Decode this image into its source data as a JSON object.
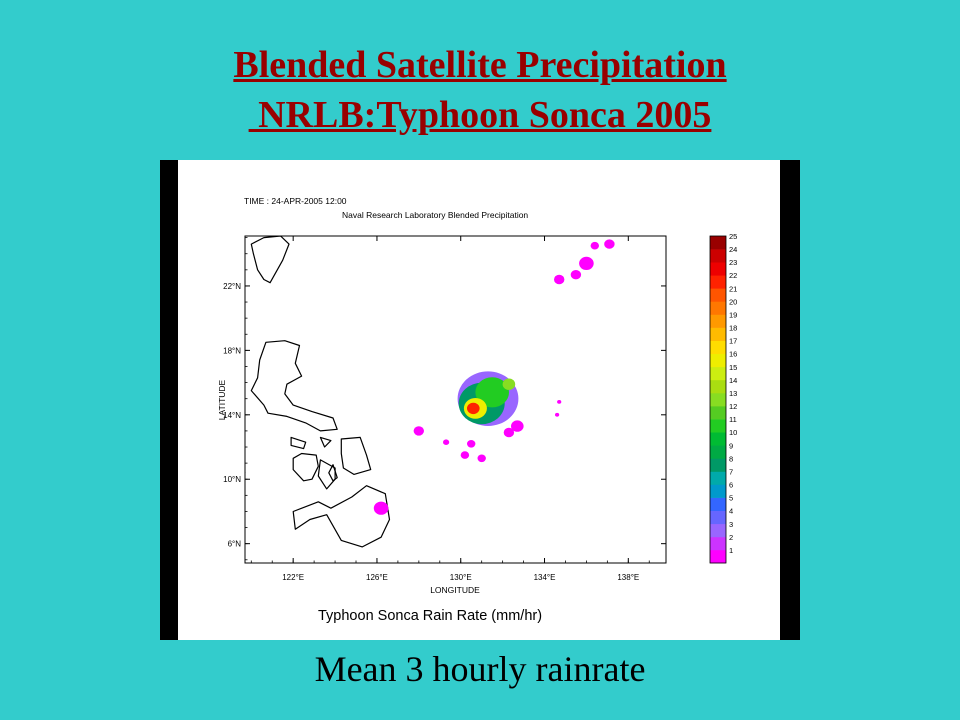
{
  "slide": {
    "title_line1": "Blended Satellite Precipitation",
    "title_line2": " NRLB:Typhoon Sonca 2005",
    "caption": "Mean 3 hourly rainrate"
  },
  "chart_data": {
    "type": "heatmap",
    "time_label": "TIME : 24-APR-2005 12:00",
    "subtitle": "Naval Research Laboratory Blended Precipitation",
    "xlabel": "LONGITUDE",
    "ylabel": "LATITUDE",
    "title": "Typhoon Sonca Rain Rate (mm/hr)",
    "xlim": [
      119.7,
      139.8
    ],
    "ylim": [
      4.8,
      25.1
    ],
    "x_ticks": [
      {
        "value": 122,
        "label": "122°E"
      },
      {
        "value": 126,
        "label": "126°E"
      },
      {
        "value": 130,
        "label": "130°E"
      },
      {
        "value": 134,
        "label": "134°E"
      },
      {
        "value": 138,
        "label": "138°E"
      }
    ],
    "y_ticks": [
      {
        "value": 6,
        "label": "6°N"
      },
      {
        "value": 10,
        "label": "10°N"
      },
      {
        "value": 14,
        "label": "14°N"
      },
      {
        "value": 18,
        "label": "18°N"
      },
      {
        "value": 22,
        "label": "22°N"
      }
    ],
    "colorbar": {
      "levels": [
        "1",
        "2",
        "3",
        "4",
        "5",
        "6",
        "7",
        "8",
        "9",
        "10",
        "11",
        "12",
        "13",
        "14",
        "15",
        "16",
        "17",
        "18",
        "19",
        "20",
        "21",
        "22",
        "23",
        "24",
        "25"
      ],
      "colors": [
        "#ff00ff",
        "#cc33ff",
        "#9966ff",
        "#6666ff",
        "#3366ff",
        "#0099cc",
        "#00aaaa",
        "#009966",
        "#00aa44",
        "#00bb33",
        "#22cc22",
        "#55cc22",
        "#88dd22",
        "#aadd11",
        "#ccee11",
        "#eeee00",
        "#ffdd00",
        "#ffbb00",
        "#ff9900",
        "#ff7700",
        "#ff5500",
        "#ff2200",
        "#ee0000",
        "#cc0000",
        "#990000"
      ]
    },
    "rain_cells": [
      {
        "lon": 131.3,
        "lat": 15.0,
        "r": 1.45,
        "level": 3
      },
      {
        "lon": 131.0,
        "lat": 14.7,
        "r": 1.1,
        "level": 8
      },
      {
        "lon": 131.5,
        "lat": 15.4,
        "r": 0.8,
        "level": 11
      },
      {
        "lon": 130.7,
        "lat": 14.4,
        "r": 0.55,
        "level": 16
      },
      {
        "lon": 130.6,
        "lat": 14.4,
        "r": 0.3,
        "level": 22
      },
      {
        "lon": 132.3,
        "lat": 15.9,
        "r": 0.3,
        "level": 13
      },
      {
        "lon": 132.7,
        "lat": 13.3,
        "r": 0.3,
        "level": 1
      },
      {
        "lon": 132.3,
        "lat": 12.9,
        "r": 0.25,
        "level": 1
      },
      {
        "lon": 128.0,
        "lat": 13.0,
        "r": 0.25,
        "level": 1
      },
      {
        "lon": 129.3,
        "lat": 12.3,
        "r": 0.15,
        "level": 1
      },
      {
        "lon": 130.5,
        "lat": 12.2,
        "r": 0.2,
        "level": 1
      },
      {
        "lon": 130.2,
        "lat": 11.5,
        "r": 0.2,
        "level": 1
      },
      {
        "lon": 131.0,
        "lat": 11.3,
        "r": 0.2,
        "level": 1
      },
      {
        "lon": 126.2,
        "lat": 8.2,
        "r": 0.35,
        "level": 1
      },
      {
        "lon": 136.0,
        "lat": 23.4,
        "r": 0.35,
        "level": 1
      },
      {
        "lon": 135.5,
        "lat": 22.7,
        "r": 0.25,
        "level": 1
      },
      {
        "lon": 134.7,
        "lat": 22.4,
        "r": 0.25,
        "level": 1
      },
      {
        "lon": 136.4,
        "lat": 24.5,
        "r": 0.2,
        "level": 1
      },
      {
        "lon": 137.1,
        "lat": 24.6,
        "r": 0.25,
        "level": 1
      },
      {
        "lon": 134.7,
        "lat": 14.8,
        "r": 0.1,
        "level": 1
      },
      {
        "lon": 134.6,
        "lat": 14.0,
        "r": 0.1,
        "level": 1
      }
    ],
    "coastlines": [
      [
        [
          120.0,
          24.6
        ],
        [
          120.6,
          25.0
        ],
        [
          121.4,
          25.1
        ],
        [
          121.8,
          24.6
        ],
        [
          121.5,
          23.6
        ],
        [
          120.9,
          22.2
        ],
        [
          120.6,
          22.4
        ],
        [
          120.3,
          23.0
        ],
        [
          120.1,
          24.0
        ]
      ],
      [
        [
          120.7,
          18.5
        ],
        [
          121.6,
          18.6
        ],
        [
          122.3,
          18.3
        ],
        [
          122.1,
          17.2
        ],
        [
          122.4,
          16.4
        ],
        [
          121.7,
          15.9
        ],
        [
          121.6,
          15.3
        ],
        [
          122.0,
          14.6
        ],
        [
          122.9,
          14.2
        ],
        [
          123.9,
          13.8
        ],
        [
          124.1,
          13.1
        ],
        [
          123.3,
          13.0
        ],
        [
          122.6,
          13.5
        ],
        [
          121.7,
          13.9
        ],
        [
          120.8,
          14.1
        ],
        [
          120.6,
          14.6
        ],
        [
          120.0,
          15.5
        ],
        [
          120.3,
          16.3
        ],
        [
          120.4,
          17.4
        ]
      ],
      [
        [
          121.9,
          12.6
        ],
        [
          122.6,
          12.3
        ],
        [
          122.5,
          11.9
        ],
        [
          121.9,
          12.1
        ]
      ],
      [
        [
          123.3,
          12.6
        ],
        [
          123.8,
          12.4
        ],
        [
          123.5,
          12.0
        ]
      ],
      [
        [
          124.3,
          12.5
        ],
        [
          125.2,
          12.6
        ],
        [
          125.5,
          11.5
        ],
        [
          125.7,
          10.6
        ],
        [
          124.9,
          10.3
        ],
        [
          124.4,
          10.7
        ],
        [
          124.3,
          11.6
        ]
      ],
      [
        [
          122.4,
          11.6
        ],
        [
          123.1,
          11.5
        ],
        [
          123.2,
          10.8
        ],
        [
          122.9,
          10.0
        ],
        [
          122.5,
          9.9
        ],
        [
          122.0,
          10.6
        ],
        [
          122.0,
          11.3
        ]
      ],
      [
        [
          123.3,
          11.2
        ],
        [
          124.0,
          10.7
        ],
        [
          124.0,
          10.0
        ],
        [
          123.6,
          9.4
        ],
        [
          123.2,
          10.2
        ]
      ],
      [
        [
          123.9,
          10.9
        ],
        [
          124.1,
          10.1
        ],
        [
          123.9,
          9.9
        ],
        [
          123.7,
          10.4
        ]
      ],
      [
        [
          118.0,
          10.8
        ],
        [
          119.5,
          11.3
        ],
        [
          119.7,
          10.4
        ],
        [
          118.8,
          9.7
        ],
        [
          118.2,
          10.0
        ]
      ],
      [
        [
          122.0,
          8.0
        ],
        [
          123.2,
          8.6
        ],
        [
          123.8,
          8.2
        ],
        [
          124.8,
          8.9
        ],
        [
          125.5,
          9.6
        ],
        [
          126.4,
          9.1
        ],
        [
          126.6,
          7.5
        ],
        [
          126.2,
          6.4
        ],
        [
          125.3,
          5.8
        ],
        [
          124.3,
          6.2
        ],
        [
          123.6,
          7.8
        ],
        [
          122.8,
          7.5
        ],
        [
          122.1,
          6.9
        ]
      ]
    ]
  }
}
